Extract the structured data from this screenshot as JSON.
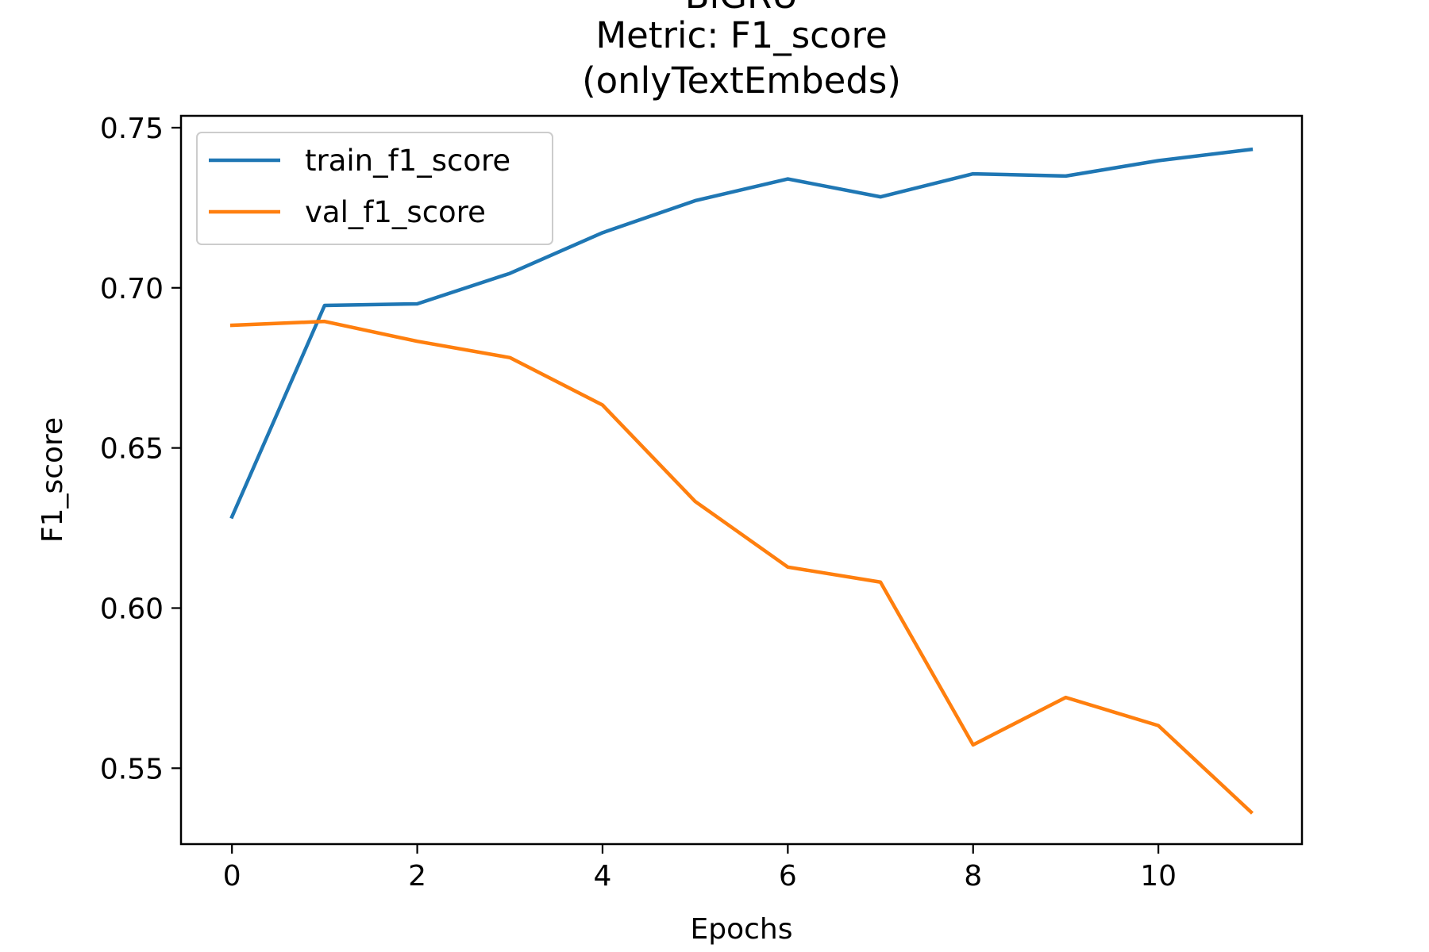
{
  "chart_data": {
    "type": "line",
    "title_lines": [
      "BiGRU",
      "Metric: F1_score",
      "(onlyTextEmbeds)"
    ],
    "xlabel": "Epochs",
    "ylabel": "F1_score",
    "xlim": [
      -0.55,
      11.55
    ],
    "ylim": [
      0.5263,
      0.7537
    ],
    "x_ticks": [
      0,
      2,
      4,
      6,
      8,
      10
    ],
    "x_tick_labels": [
      "0",
      "2",
      "4",
      "6",
      "8",
      "10"
    ],
    "y_ticks": [
      0.55,
      0.6,
      0.65,
      0.7,
      0.75
    ],
    "y_tick_labels": [
      "0.55",
      "0.60",
      "0.65",
      "0.70",
      "0.75"
    ],
    "grid": false,
    "legend_position": "top-left",
    "x": [
      0,
      1,
      2,
      3,
      4,
      5,
      6,
      7,
      8,
      9,
      10,
      11
    ],
    "series": [
      {
        "name": "train_f1_score",
        "color": "#1f77b4",
        "values": [
          0.6285,
          0.6945,
          0.695,
          0.7045,
          0.7172,
          0.7272,
          0.734,
          0.7284,
          0.7356,
          0.7349,
          0.7397,
          0.7432
        ]
      },
      {
        "name": "val_f1_score",
        "color": "#ff7f0e",
        "values": [
          0.6883,
          0.6895,
          0.6833,
          0.6782,
          0.6634,
          0.6333,
          0.6128,
          0.6081,
          0.5573,
          0.5721,
          0.5633,
          0.5363
        ]
      }
    ]
  }
}
